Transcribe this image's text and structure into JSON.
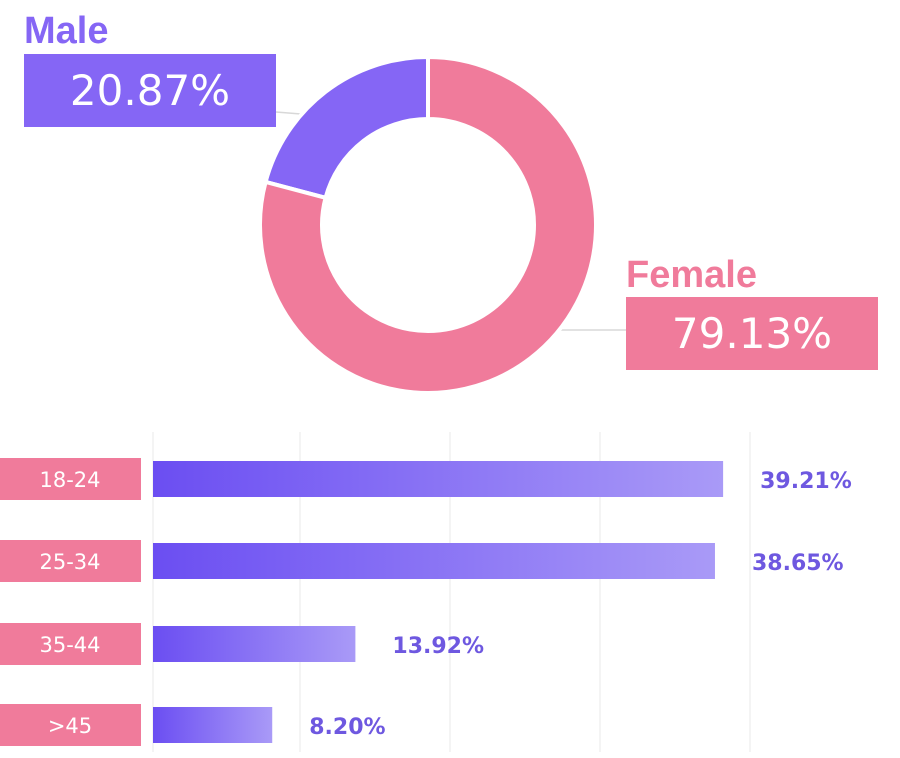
{
  "colors": {
    "male": "#8566f5",
    "female": "#f07b9b",
    "bar_start": "#6b4ef2",
    "bar_end": "#a99af7",
    "bar_value_text": "#6e58e0",
    "category_box": "#f07b9b"
  },
  "chart_data": [
    {
      "type": "pie",
      "variant": "donut",
      "title": "",
      "slices": [
        {
          "label": "Male",
          "value": 20.87,
          "display": "20.87%",
          "color": "#8566f5"
        },
        {
          "label": "Female",
          "value": 79.13,
          "display": "79.13%",
          "color": "#f07b9b"
        }
      ]
    },
    {
      "type": "bar",
      "orientation": "horizontal",
      "title": "",
      "xlabel": "",
      "ylabel": "",
      "categories": [
        "18-24",
        "25-34",
        "35-44",
        ">45"
      ],
      "values": [
        39.21,
        38.65,
        13.92,
        8.2
      ],
      "value_labels": [
        "39.21%",
        "38.65%",
        "13.92%",
        "8.20%"
      ],
      "xlim": [
        0,
        50
      ],
      "grid": "vertical"
    }
  ]
}
